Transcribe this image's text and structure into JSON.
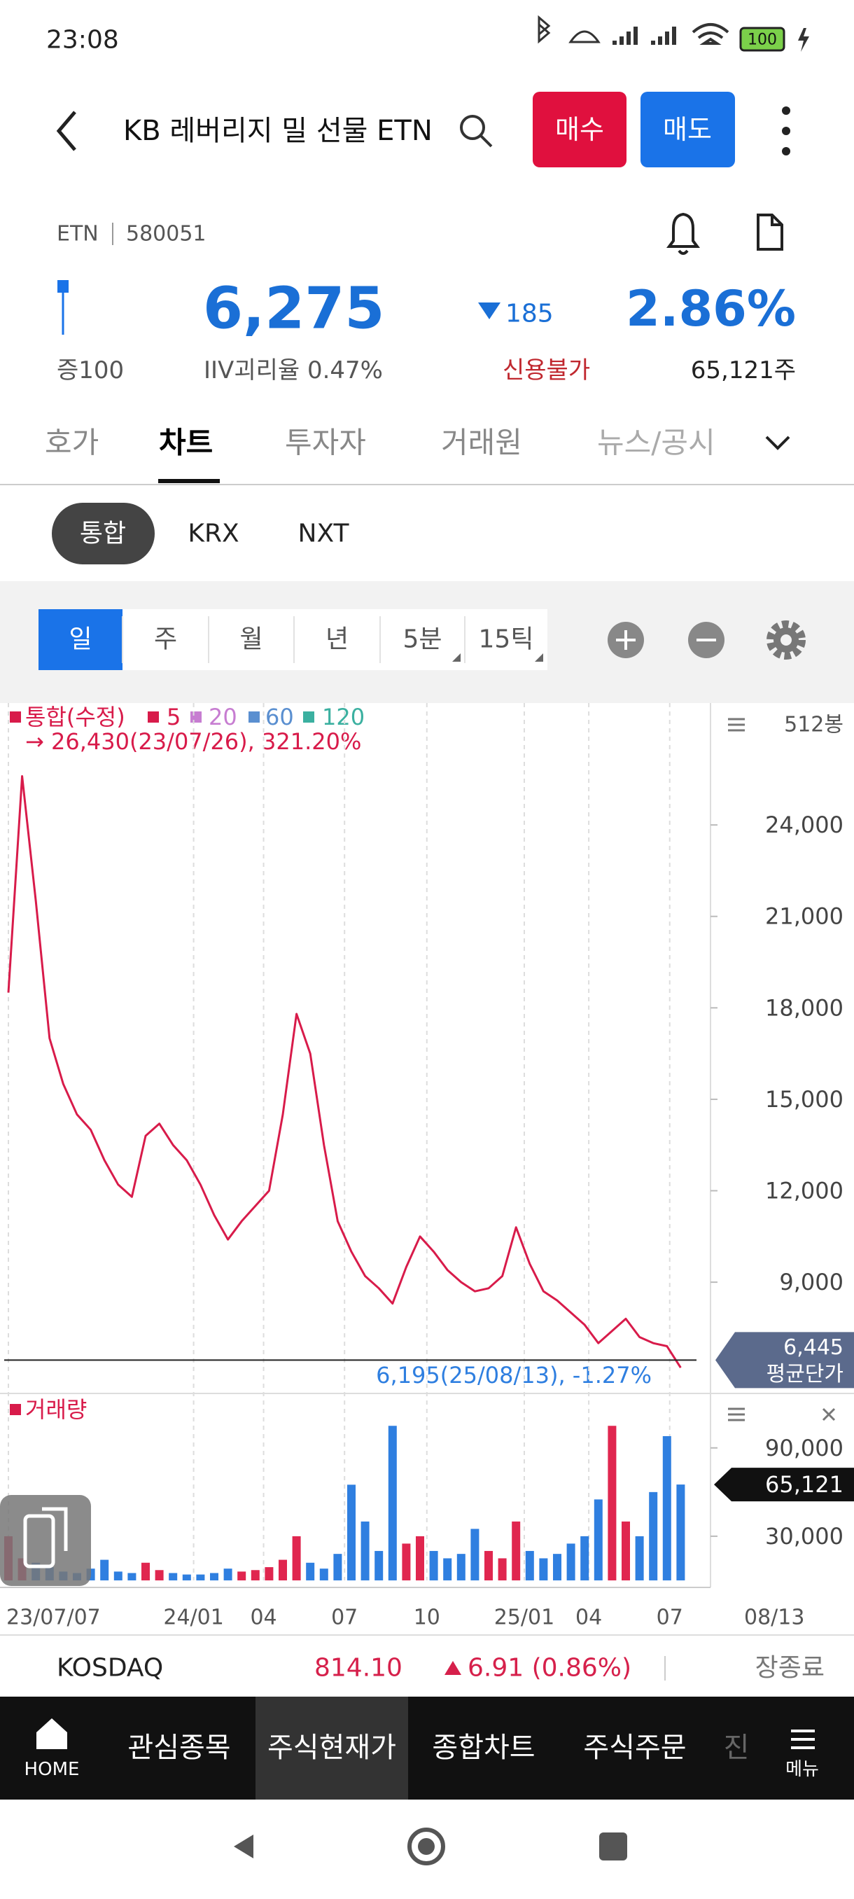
{
  "status_bar": {
    "time": "23:08",
    "battery": "100"
  },
  "header": {
    "title": "KB 레버리지 밀 선물 ETN",
    "buy": "매수",
    "sell": "매도"
  },
  "quote": {
    "market": "ETN",
    "code": "580051",
    "price": "6,275",
    "change": "185",
    "change_rate": "2.86%",
    "margin": "증100",
    "iiv": "IIV괴리율 0.47%",
    "credit": "신용불가",
    "volume": "65,121주"
  },
  "tabs": [
    "호가",
    "차트",
    "투자자",
    "거래원",
    "뉴스/공시"
  ],
  "venues": [
    "통합",
    "KRX",
    "NXT"
  ],
  "periods": [
    "일",
    "주",
    "월",
    "년",
    "5분",
    "15틱"
  ],
  "chart_data": {
    "type": "line",
    "series": [
      {
        "name": "통합(수정)",
        "color": "#d81b4a",
        "values": [
          18500,
          25600,
          21500,
          17000,
          15500,
          14500,
          14000,
          13000,
          12200,
          11800,
          13800,
          14200,
          13500,
          13000,
          12200,
          11200,
          10400,
          11000,
          11500,
          12000,
          14500,
          17800,
          16500,
          13500,
          11000,
          10000,
          9200,
          8800,
          8300,
          9500,
          10500,
          10000,
          9400,
          9000,
          8700,
          8800,
          9200,
          10800,
          9600,
          8700,
          8400,
          8000,
          7600,
          7000,
          7400,
          7800,
          7200,
          7000,
          6900,
          6195
        ]
      }
    ],
    "legend": [
      {
        "name": "5",
        "color": "#d81b4a"
      },
      {
        "name": "20",
        "color": "#c77dd1"
      },
      {
        "name": "60",
        "color": "#5a8fd0"
      },
      {
        "name": "120",
        "color": "#3bb0a0"
      }
    ],
    "high_note": "→ 26,430(23/07/26), 321.20%",
    "last_note": "6,195(25/08/13), -1.27%",
    "bar_count": "512봉",
    "ylim": [
      5350,
      28000
    ],
    "yticks": [
      {
        "value": 9000,
        "label": "9,000"
      },
      {
        "value": 12000,
        "label": "12,000"
      },
      {
        "value": 15000,
        "label": "15,000"
      },
      {
        "value": 18000,
        "label": "18,000"
      },
      {
        "value": 21000,
        "label": "21,000"
      },
      {
        "value": 24000,
        "label": "24,000"
      }
    ],
    "avg_line": {
      "value": 6445,
      "label": "6,445",
      "name": "평균단가"
    },
    "xticks": [
      {
        "value": 0,
        "label": "23/07/07"
      },
      {
        "value": 13.5,
        "label": "24/01"
      },
      {
        "value": 18.6,
        "label": "04"
      },
      {
        "value": 24.5,
        "label": "07"
      },
      {
        "value": 30.5,
        "label": "10"
      },
      {
        "value": 37.6,
        "label": "25/01"
      },
      {
        "value": 42.3,
        "label": "04"
      },
      {
        "value": 48.2,
        "label": "07"
      }
    ],
    "last_date": "08/13",
    "volume": {
      "title": "거래량",
      "color_up": "#e0264f",
      "color_down": "#2f7fe0",
      "values": [
        30000,
        15000,
        12000,
        9000,
        6000,
        5000,
        8000,
        14000,
        6000,
        5000,
        12000,
        7000,
        5000,
        4000,
        4000,
        5000,
        8000,
        6000,
        7000,
        9000,
        14000,
        30000,
        12000,
        8000,
        18000,
        65000,
        40000,
        20000,
        105000,
        25000,
        30000,
        20000,
        15000,
        18000,
        35000,
        20000,
        15000,
        40000,
        20000,
        15000,
        18000,
        25000,
        30000,
        55000,
        105000,
        40000,
        30000,
        60000,
        98000,
        65121
      ],
      "ylim": [
        0,
        127000
      ],
      "yticks": [
        {
          "value": 30000,
          "label": "30,000"
        },
        {
          "value": 90000,
          "label": "90,000"
        }
      ],
      "last": {
        "value": 65121,
        "label": "65,121"
      }
    }
  },
  "index_bar": {
    "name": "KOSDAQ",
    "value": "814.10",
    "change": "6.91 (0.86%)",
    "status": "장종료"
  },
  "nav": [
    "HOME",
    "관심종목",
    "주식현재가",
    "종합차트",
    "주식주문",
    "진",
    "메뉴"
  ]
}
